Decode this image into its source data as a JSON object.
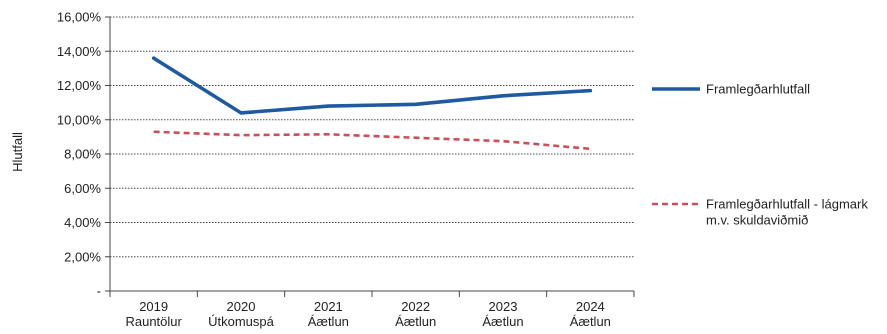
{
  "chart_data": {
    "type": "line",
    "title": "",
    "xlabel": "",
    "ylabel": "Hlutfall",
    "categories": [
      [
        "2019",
        "Rauntölur"
      ],
      [
        "2020",
        "Útkomuspá"
      ],
      [
        "2021",
        "Áætlun"
      ],
      [
        "2022",
        "Áætlun"
      ],
      [
        "2023",
        "Áætlun"
      ],
      [
        "2024",
        "Áætlun"
      ]
    ],
    "ylim": [
      0,
      16
    ],
    "yticks": [
      {
        "value": 0,
        "label": "-"
      },
      {
        "value": 2,
        "label": "2,00%"
      },
      {
        "value": 4,
        "label": "4,00%"
      },
      {
        "value": 6,
        "label": "6,00%"
      },
      {
        "value": 8,
        "label": "8,00%"
      },
      {
        "value": 10,
        "label": "10,00%"
      },
      {
        "value": 12,
        "label": "12,00%"
      },
      {
        "value": 14,
        "label": "14,00%"
      },
      {
        "value": 16,
        "label": "16,00%"
      }
    ],
    "grid": true,
    "legend_position": "right",
    "series": [
      {
        "name": [
          "Framlegðarhlutfall"
        ],
        "values": [
          13.6,
          10.4,
          10.8,
          10.9,
          11.4,
          11.7
        ],
        "color": "#1f5aa0",
        "style": "solid"
      },
      {
        "name": [
          "Framlegðarhlutfall - lágmark",
          "m.v. skuldaviðmið"
        ],
        "values": [
          9.3,
          9.1,
          9.15,
          8.95,
          8.75,
          8.3
        ],
        "color": "#c8505a",
        "style": "dashed"
      }
    ]
  }
}
